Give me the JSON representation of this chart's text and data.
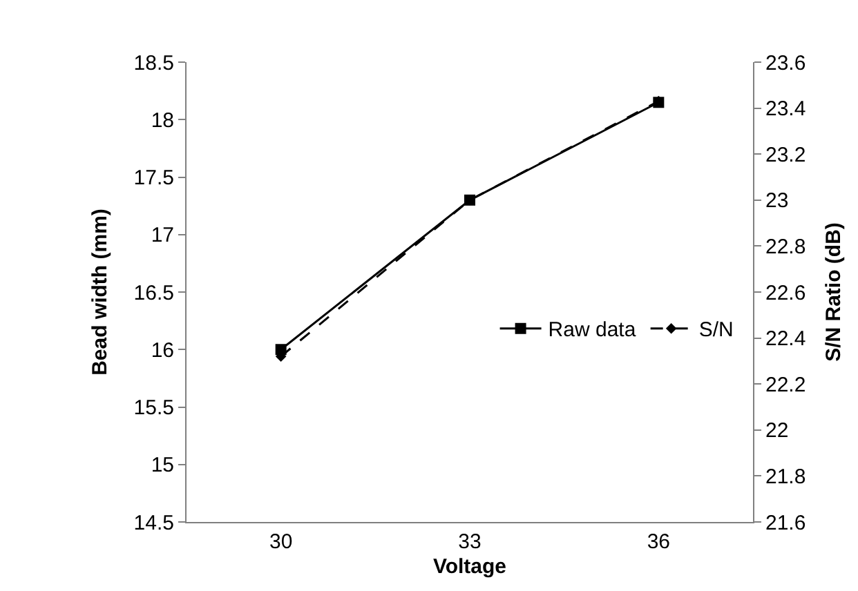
{
  "chart_data": {
    "type": "line",
    "xlabel": "Voltage",
    "ylabel": "Bead width (mm)",
    "y2label": "S/N Ratio (dB)",
    "categories": [
      "30",
      "33",
      "36"
    ],
    "series": [
      {
        "name": "Raw data",
        "color": "#000000",
        "values": [
          16.0,
          17.3,
          18.15
        ],
        "marker": "square",
        "line_style": "solid"
      },
      {
        "name": "S/N",
        "color": "#000000",
        "values": [
          22.32,
          23.0,
          23.43
        ],
        "axis": "y2",
        "marker": "diamond",
        "line_style": "dashed"
      }
    ],
    "ylim": [
      14.5,
      18.5
    ],
    "yticks": [
      14.5,
      15,
      15.5,
      16,
      16.5,
      17,
      17.5,
      18,
      18.5
    ],
    "y2lim": [
      21.6,
      23.6
    ],
    "y2ticks": [
      21.6,
      21.8,
      22,
      22.2,
      22.4,
      22.6,
      22.8,
      23,
      23.2,
      23.4,
      23.6
    ],
    "legend": "right"
  }
}
